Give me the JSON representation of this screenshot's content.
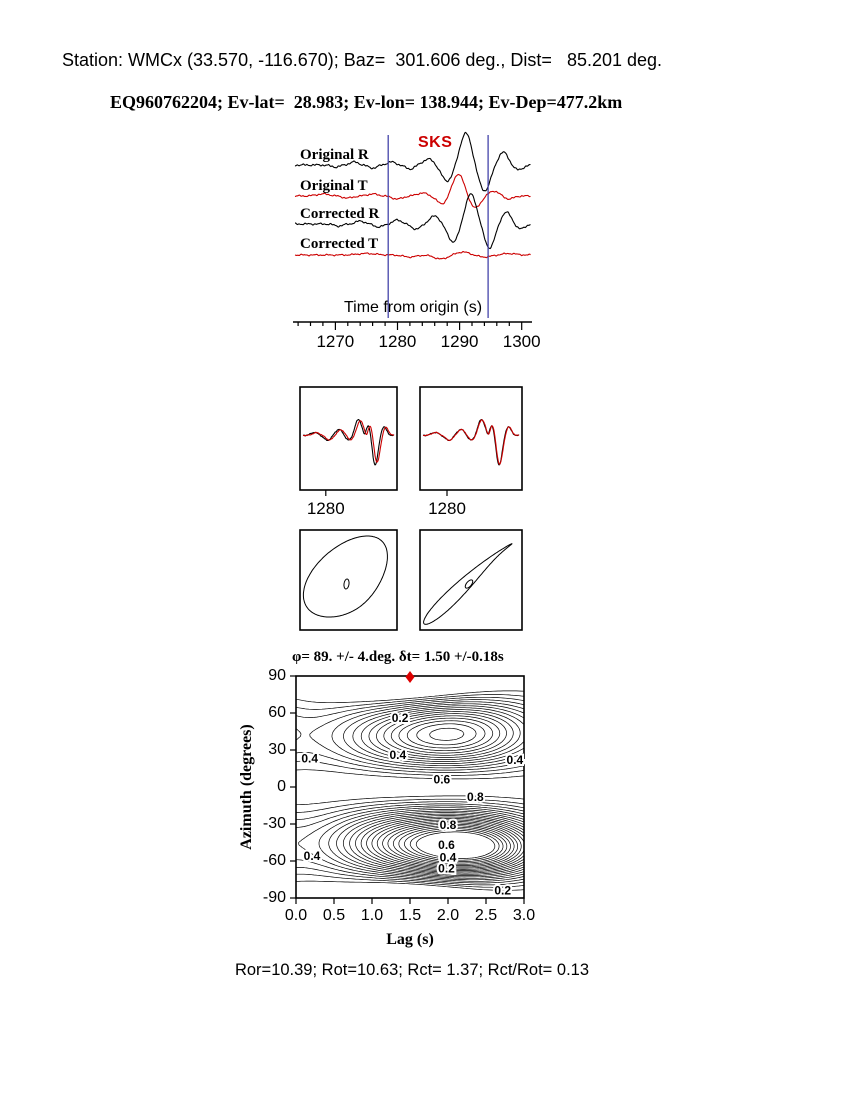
{
  "header": {
    "line1": "Station: WMCx (33.570, -116.670); Baz=  301.606 deg., Dist=   85.201 deg.",
    "line2": "EQ960762204; Ev-lat=  28.983; Ev-lon= 138.944; Ev-Dep=477.2km"
  },
  "footer": {
    "text": "Ror=10.39; Rot=10.63; Rct= 1.37; Rct/Rot= 0.13"
  },
  "colors": {
    "radial": "#000000",
    "transverse": "#cc0000",
    "window_line": "#4444aa",
    "phase": "#cc0000",
    "best_marker": "#dd0000"
  },
  "waveforms": {
    "phase_label": "SKS",
    "axis_label": "Time from origin (s)",
    "t_min": 1263.5,
    "t_max": 1301.5,
    "tick_major": [
      1270,
      1280,
      1290,
      1300
    ],
    "tick_minor_step": 2,
    "window": [
      1278.5,
      1294.6
    ],
    "traces": [
      {
        "label": "Original R",
        "color": "black",
        "noise": 1.1,
        "components": [
          {
            "c": 1270,
            "w": 1.0,
            "A": -2
          },
          {
            "c": 1273,
            "w": 1.0,
            "A": 3
          },
          {
            "c": 1276,
            "w": 1.0,
            "A": -3
          },
          {
            "c": 1279,
            "w": 1.0,
            "A": 3
          },
          {
            "c": 1282,
            "w": 1.0,
            "A": -4
          },
          {
            "c": 1285,
            "w": 1.2,
            "A": 6
          },
          {
            "c": 1288,
            "w": 1.3,
            "A": -16
          },
          {
            "c": 1291,
            "w": 1.3,
            "A": 32
          },
          {
            "c": 1294,
            "w": 1.3,
            "A": -26
          },
          {
            "c": 1297,
            "w": 1.1,
            "A": 13
          },
          {
            "c": 1299.5,
            "w": 1.0,
            "A": -5
          }
        ]
      },
      {
        "label": "Original T",
        "color": "red",
        "noise": 0.9,
        "components": [
          {
            "c": 1268,
            "w": 1.5,
            "A": 2
          },
          {
            "c": 1272,
            "w": 1.2,
            "A": -2
          },
          {
            "c": 1276,
            "w": 1.2,
            "A": 2
          },
          {
            "c": 1280,
            "w": 1.2,
            "A": -3
          },
          {
            "c": 1284,
            "w": 1.2,
            "A": 3
          },
          {
            "c": 1287.2,
            "w": 1.2,
            "A": -8
          },
          {
            "c": 1289.8,
            "w": 1.3,
            "A": 22
          },
          {
            "c": 1292.5,
            "w": 1.2,
            "A": -12
          },
          {
            "c": 1295.5,
            "w": 1.1,
            "A": 5
          },
          {
            "c": 1298,
            "w": 1.0,
            "A": -3
          }
        ]
      },
      {
        "label": "Corrected R",
        "color": "black",
        "noise": 1.0,
        "components": [
          {
            "c": 1270.5,
            "w": 1.0,
            "A": -2
          },
          {
            "c": 1274,
            "w": 1.0,
            "A": 3
          },
          {
            "c": 1277,
            "w": 1.0,
            "A": -3
          },
          {
            "c": 1280,
            "w": 1.0,
            "A": 4
          },
          {
            "c": 1283,
            "w": 1.1,
            "A": -5
          },
          {
            "c": 1286,
            "w": 1.2,
            "A": 8
          },
          {
            "c": 1289,
            "w": 1.3,
            "A": -18
          },
          {
            "c": 1291.8,
            "w": 1.3,
            "A": 30
          },
          {
            "c": 1294.8,
            "w": 1.2,
            "A": -24
          },
          {
            "c": 1297.5,
            "w": 1.1,
            "A": 12
          },
          {
            "c": 1299.8,
            "w": 1.0,
            "A": -5
          }
        ]
      },
      {
        "label": "Corrected T",
        "color": "red",
        "noise": 0.8,
        "components": [
          {
            "c": 1275,
            "w": 2.0,
            "A": 1.5
          },
          {
            "c": 1282,
            "w": 1.5,
            "A": -2
          },
          {
            "c": 1287,
            "w": 1.5,
            "A": -4
          },
          {
            "c": 1290.5,
            "w": 1.5,
            "A": 3
          },
          {
            "c": 1294,
            "w": 1.5,
            "A": -2
          },
          {
            "c": 1298,
            "w": 1.5,
            "A": 1.5
          }
        ]
      }
    ]
  },
  "pair_panels": {
    "tick_label": "1280",
    "t_min": 1274,
    "t_max": 1298,
    "tick_t": 1280,
    "black": [
      {
        "c": 1277,
        "w": 1.3,
        "A": 3
      },
      {
        "c": 1280.5,
        "w": 1.3,
        "A": -5
      },
      {
        "c": 1283.5,
        "w": 1.4,
        "A": 6
      },
      {
        "c": 1286,
        "w": 1.2,
        "A": -5
      },
      {
        "c": 1288.6,
        "w": 1.2,
        "A": 16
      },
      {
        "c": 1290.3,
        "w": 0.55,
        "A": -5
      },
      {
        "c": 1291.3,
        "w": 1.0,
        "A": 12
      },
      {
        "c": 1293,
        "w": 1.1,
        "A": -30
      },
      {
        "c": 1295.3,
        "w": 1.0,
        "A": 9
      }
    ],
    "panels": [
      {
        "red_shift": 0.5,
        "red_scale": 0.92
      },
      {
        "red_shift": 0.12,
        "red_scale": 0.98
      }
    ]
  },
  "particle_panels": [
    {
      "phase_deg": 65
    },
    {
      "phase_deg": 10
    }
  ],
  "contour": {
    "title": "φ= 89. +/- 4.deg. δt= 1.50 +/-0.18s",
    "xlabel": "Lag (s)",
    "ylabel": "Azimuth (degrees)",
    "x_ticks": [
      "0.0",
      "0.5",
      "1.0",
      "1.5",
      "2.0",
      "2.5",
      "3.0"
    ],
    "y_ticks": [
      "90",
      "60",
      "30",
      "0",
      "-30",
      "-60",
      "-90"
    ],
    "x_range": [
      0,
      3
    ],
    "y_range": [
      -90,
      90
    ],
    "level_step": 0.05,
    "labels": [
      {
        "v": "0.2",
        "t": 1.37,
        "a": 56
      },
      {
        "v": "0.4",
        "t": 0.18,
        "a": 23
      },
      {
        "v": "0.4",
        "t": 1.34,
        "a": 26
      },
      {
        "v": "0.4",
        "t": 2.88,
        "a": 22
      },
      {
        "v": "0.6",
        "t": 1.92,
        "a": 6
      },
      {
        "v": "0.8",
        "t": 2.36,
        "a": -8
      },
      {
        "v": "0.8",
        "t": 2.0,
        "a": -31
      },
      {
        "v": "0.6",
        "t": 1.98,
        "a": -47
      },
      {
        "v": "0.4",
        "t": 0.21,
        "a": -56
      },
      {
        "v": "0.4",
        "t": 2.0,
        "a": -57
      },
      {
        "v": "0.2",
        "t": 1.98,
        "a": -66
      },
      {
        "v": "0.2",
        "t": 2.72,
        "a": -84
      }
    ],
    "best": {
      "lag_s": 1.5,
      "azimuth_deg": 89
    }
  },
  "chart_data": [
    {
      "type": "line",
      "title": "SKS waveforms before and after splitting correction",
      "xlabel": "Time from origin (s)",
      "x_range": [
        1263.5,
        1301.5
      ],
      "x_ticks": [
        1270,
        1280,
        1290,
        1300
      ],
      "phase_marker": "SKS",
      "analysis_window_s": [
        1278.5,
        1294.6
      ],
      "series": [
        {
          "name": "Original R",
          "color": "#000000"
        },
        {
          "name": "Original T",
          "color": "#cc0000"
        },
        {
          "name": "Corrected R",
          "color": "#000000"
        },
        {
          "name": "Corrected T",
          "color": "#cc0000"
        }
      ]
    },
    {
      "type": "line",
      "title": "Fast/slow waveform match panels",
      "panels": 2,
      "x_tick_label": 1280
    },
    {
      "type": "scatter",
      "title": "Particle motion (left: original, right: corrected)",
      "panels": 2
    },
    {
      "type": "heatmap",
      "subtype": "contour",
      "title": "φ= 89. +/- 4.deg. δt= 1.50 +/-0.18s",
      "xlabel": "Lag (s)",
      "ylabel": "Azimuth (degrees)",
      "x_range": [
        0,
        3
      ],
      "y_range": [
        -90,
        90
      ],
      "x_ticks": [
        0.0,
        0.5,
        1.0,
        1.5,
        2.0,
        2.5,
        3.0
      ],
      "y_ticks": [
        90,
        60,
        30,
        0,
        -30,
        -60,
        -90
      ],
      "contour_label_values": [
        0.2,
        0.4,
        0.6,
        0.8
      ],
      "best_fit": {
        "fast_azimuth_deg": 89,
        "fast_azimuth_err_deg": 4,
        "delay_time_s": 1.5,
        "delay_time_err_s": 0.18
      }
    },
    {
      "type": "table",
      "title": "Energy ratios",
      "values": {
        "Ror": 10.39,
        "Rot": 10.63,
        "Rct": 1.37,
        "Rct_over_Rot": 0.13
      }
    }
  ]
}
